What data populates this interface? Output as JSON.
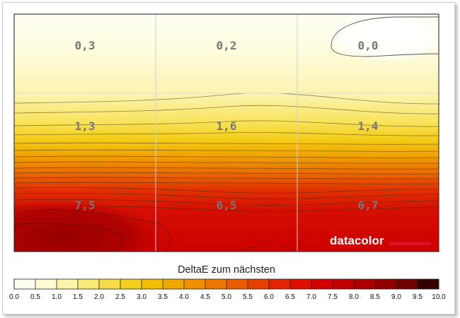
{
  "chart_data": {
    "type": "heatmap",
    "title": "DeltaE zum nächsten",
    "rows": 3,
    "cols": 3,
    "cells": [
      [
        "0,3",
        "0,2",
        "0,0"
      ],
      [
        "1,3",
        "1,6",
        "1,4"
      ],
      [
        "7,5",
        "6,5",
        "6,7"
      ]
    ],
    "values": [
      [
        0.3,
        0.2,
        0.0
      ],
      [
        1.3,
        1.6,
        1.4
      ],
      [
        7.5,
        6.5,
        6.7
      ]
    ],
    "scale": {
      "min": 0.0,
      "max": 10.0,
      "ticks": [
        "0.0",
        "0.5",
        "1.0",
        "1.5",
        "2.0",
        "2.5",
        "3.0",
        "3.5",
        "4.0",
        "4.5",
        "5.0",
        "5.5",
        "6.0",
        "6.5",
        "7.0",
        "7.5",
        "8.0",
        "8.5",
        "9.0",
        "9.5",
        "10.0"
      ],
      "colors": [
        "#fefef0",
        "#fcfbd2",
        "#faf3a8",
        "#f8ea7a",
        "#f5dc48",
        "#f3ce1f",
        "#f1be00",
        "#efa800",
        "#ee9100",
        "#ec7800",
        "#e95d00",
        "#e54000",
        "#e12400",
        "#dc0f00",
        "#d30000",
        "#c30000",
        "#ad0000",
        "#920000",
        "#6e0000",
        "#360000"
      ]
    },
    "brand": "datacolor"
  }
}
